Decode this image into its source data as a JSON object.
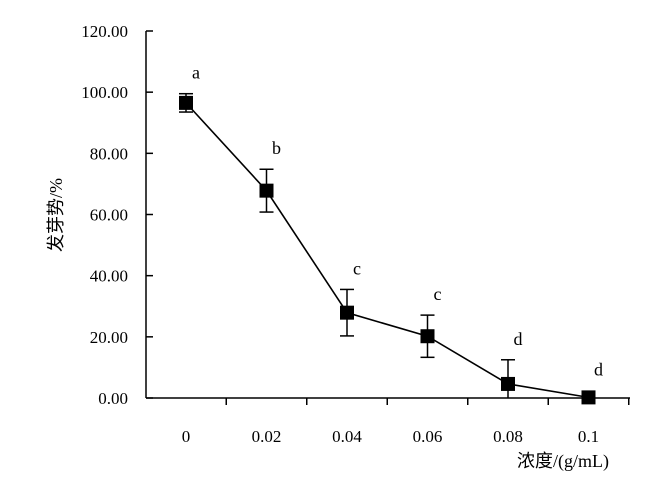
{
  "chart_data": {
    "type": "line",
    "xlabel": "浓度/(g/mL)",
    "ylabel": "发芽势/%",
    "ylim": [
      0,
      120
    ],
    "yticks": [
      "0.00",
      "20.00",
      "40.00",
      "60.00",
      "80.00",
      "100.00",
      "120.00"
    ],
    "categories": [
      "0",
      "0.02",
      "0.04",
      "0.06",
      "0.08",
      "0.1"
    ],
    "series": [
      {
        "values": [
          96.5,
          67.8,
          27.9,
          20.2,
          4.6,
          0.2
        ],
        "error": [
          3.0,
          7.0,
          7.6,
          6.9,
          7.9,
          0.5
        ],
        "annotations": [
          "a",
          "b",
          "c",
          "c",
          "d",
          "d"
        ]
      }
    ],
    "marker": "square",
    "grid": false,
    "legend": "none",
    "colors": {
      "line": "#000000",
      "marker": "#000000",
      "axis": "#000000"
    }
  }
}
